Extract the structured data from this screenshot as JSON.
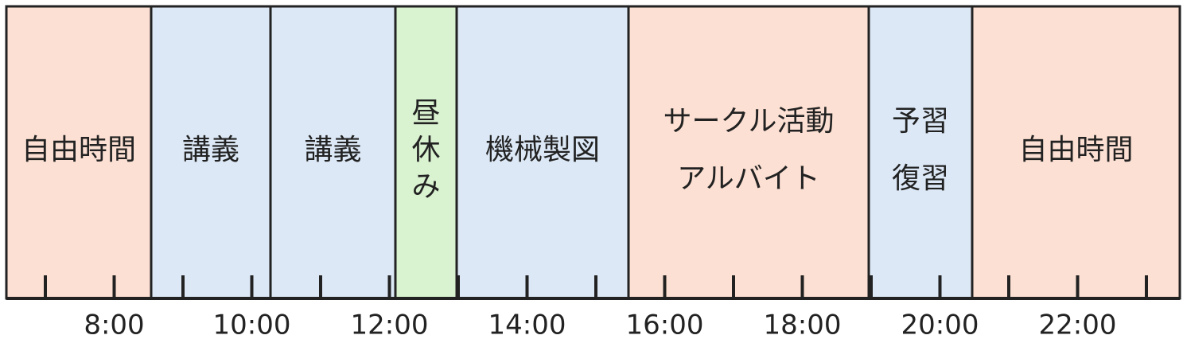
{
  "timeline": {
    "time_labels": [
      "8:00",
      "10:00",
      "12:00",
      "14:00",
      "16:00",
      "18:00",
      "20:00",
      "22:00"
    ],
    "colors": {
      "free": "#fce0d3",
      "lecture": "#dce8f6",
      "lunch": "#d9f2d0",
      "border": "#222222"
    },
    "blocks": [
      {
        "name": "free-time-morning",
        "category": "free",
        "label": [
          "自由時間"
        ],
        "vertical": false
      },
      {
        "name": "lecture-1",
        "category": "lecture",
        "label": [
          "講義"
        ],
        "vertical": false
      },
      {
        "name": "lecture-2",
        "category": "lecture",
        "label": [
          "講義"
        ],
        "vertical": false
      },
      {
        "name": "lunch-break",
        "category": "lunch",
        "label": [
          "昼",
          "休",
          "み"
        ],
        "vertical": true
      },
      {
        "name": "mechanical-drawing",
        "category": "lecture",
        "label": [
          "機械製図"
        ],
        "vertical": false
      },
      {
        "name": "club-and-parttime",
        "category": "free",
        "label": [
          "サークル活動",
          "アルバイト"
        ],
        "vertical": false
      },
      {
        "name": "prep-and-review",
        "category": "lecture",
        "label": [
          "予習",
          "復習"
        ],
        "vertical": false
      },
      {
        "name": "free-time-night",
        "category": "free",
        "label": [
          "自由時間"
        ],
        "vertical": false
      }
    ]
  }
}
